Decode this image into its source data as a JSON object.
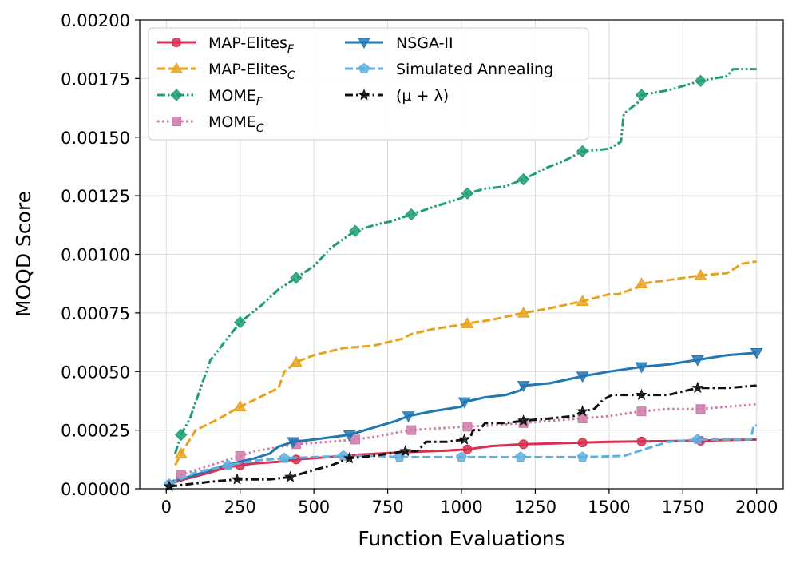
{
  "chart_data": {
    "type": "line",
    "title": "",
    "xlabel": "Function Evaluations",
    "ylabel": "MOQD Score",
    "xlim": [
      -90,
      2090
    ],
    "ylim": [
      0,
      0.002
    ],
    "xticks": [
      0,
      250,
      500,
      750,
      1000,
      1250,
      1500,
      1750,
      2000
    ],
    "xtick_labels": [
      "0",
      "250",
      "500",
      "750",
      "1000",
      "1250",
      "1500",
      "1750",
      "2000"
    ],
    "yticks": [
      0,
      0.00025,
      0.0005,
      0.00075,
      0.001,
      0.00125,
      0.0015,
      0.00175,
      0.002
    ],
    "ytick_labels": [
      "0.00000",
      "0.00025",
      "0.00050",
      "0.00075",
      "0.00100",
      "0.00125",
      "0.00150",
      "0.00175",
      "0.00200"
    ],
    "grid": true,
    "legend_position": "top-left",
    "series": [
      {
        "name": "MAP-Elites",
        "subscript": "F",
        "color": "#d62f4f",
        "line_style": "solid",
        "marker": "circle",
        "markers_at": [
          250,
          440,
          1020,
          1210,
          1410,
          1610,
          1810
        ],
        "points": [
          [
            10,
            2e-05
          ],
          [
            60,
            4e-05
          ],
          [
            150,
            7e-05
          ],
          [
            200,
            9e-05
          ],
          [
            250,
            0.0001
          ],
          [
            300,
            0.000108
          ],
          [
            380,
            0.000115
          ],
          [
            440,
            0.000125
          ],
          [
            550,
            0.000135
          ],
          [
            650,
            0.000145
          ],
          [
            750,
            0.000152
          ],
          [
            850,
            0.000158
          ],
          [
            950,
            0.000163
          ],
          [
            1020,
            0.000168
          ],
          [
            1100,
            0.000182
          ],
          [
            1210,
            0.00019
          ],
          [
            1300,
            0.000193
          ],
          [
            1410,
            0.000197
          ],
          [
            1500,
            0.0002
          ],
          [
            1610,
            0.000202
          ],
          [
            1700,
            0.000203
          ],
          [
            1810,
            0.000205
          ],
          [
            1900,
            0.000208
          ],
          [
            2000,
            0.00021
          ]
        ]
      },
      {
        "name": "MAP-Elites",
        "subscript": "C",
        "color": "#e8a21f",
        "line_style": "dashed",
        "marker": "triangle-up",
        "markers_at": [
          50,
          250,
          440,
          1020,
          1210,
          1410,
          1610,
          1810
        ],
        "points": [
          [
            30,
            0.0001
          ],
          [
            50,
            0.00015
          ],
          [
            100,
            0.00025
          ],
          [
            180,
            0.0003
          ],
          [
            250,
            0.00035
          ],
          [
            300,
            0.00038
          ],
          [
            380,
            0.00043
          ],
          [
            400,
            0.0005
          ],
          [
            440,
            0.00054
          ],
          [
            500,
            0.00057
          ],
          [
            600,
            0.0006
          ],
          [
            700,
            0.00061
          ],
          [
            800,
            0.00064
          ],
          [
            830,
            0.00066
          ],
          [
            900,
            0.00068
          ],
          [
            1000,
            0.0007
          ],
          [
            1020,
            0.000705
          ],
          [
            1100,
            0.00072
          ],
          [
            1210,
            0.00075
          ],
          [
            1300,
            0.00077
          ],
          [
            1410,
            0.0008
          ],
          [
            1500,
            0.00083
          ],
          [
            1530,
            0.00083
          ],
          [
            1600,
            0.00086
          ],
          [
            1610,
            0.000875
          ],
          [
            1700,
            0.00089
          ],
          [
            1810,
            0.00091
          ],
          [
            1900,
            0.00092
          ],
          [
            1950,
            0.00096
          ],
          [
            2000,
            0.00097
          ]
        ]
      },
      {
        "name": "MOME",
        "subscript": "F",
        "color": "#1d9e73",
        "line_style": "dashdotdot",
        "marker": "diamond",
        "markers_at": [
          50,
          250,
          440,
          640,
          830,
          1020,
          1210,
          1410,
          1610,
          1810
        ],
        "points": [
          [
            30,
            0.00015
          ],
          [
            50,
            0.00023
          ],
          [
            80,
            0.0003
          ],
          [
            150,
            0.00055
          ],
          [
            170,
            0.00058
          ],
          [
            200,
            0.00063
          ],
          [
            250,
            0.00071
          ],
          [
            320,
            0.00078
          ],
          [
            380,
            0.00085
          ],
          [
            440,
            0.0009
          ],
          [
            500,
            0.00095
          ],
          [
            560,
            0.00103
          ],
          [
            640,
            0.0011
          ],
          [
            720,
            0.00113
          ],
          [
            760,
            0.00114
          ],
          [
            830,
            0.00117
          ],
          [
            900,
            0.0012
          ],
          [
            1000,
            0.00124
          ],
          [
            1020,
            0.00126
          ],
          [
            1080,
            0.00128
          ],
          [
            1150,
            0.00129
          ],
          [
            1210,
            0.00132
          ],
          [
            1290,
            0.00137
          ],
          [
            1350,
            0.0014
          ],
          [
            1410,
            0.00144
          ],
          [
            1500,
            0.00145
          ],
          [
            1540,
            0.00148
          ],
          [
            1550,
            0.0016
          ],
          [
            1600,
            0.00165
          ],
          [
            1610,
            0.00168
          ],
          [
            1700,
            0.0017
          ],
          [
            1810,
            0.00174
          ],
          [
            1900,
            0.00176
          ],
          [
            1920,
            0.00179
          ],
          [
            2000,
            0.00179
          ]
        ]
      },
      {
        "name": "MOME",
        "subscript": "C",
        "color": "#cc79a7",
        "line_style": "dotted",
        "marker": "square",
        "markers_at": [
          50,
          250,
          440,
          640,
          830,
          1020,
          1210,
          1410,
          1610,
          1810
        ],
        "points": [
          [
            10,
            2e-05
          ],
          [
            50,
            6e-05
          ],
          [
            150,
            0.0001
          ],
          [
            250,
            0.00014
          ],
          [
            300,
            0.00016
          ],
          [
            440,
            0.00019
          ],
          [
            550,
            0.0002
          ],
          [
            640,
            0.00021
          ],
          [
            700,
            0.00022
          ],
          [
            830,
            0.00025
          ],
          [
            950,
            0.00026
          ],
          [
            1020,
            0.000265
          ],
          [
            1100,
            0.00027
          ],
          [
            1210,
            0.00028
          ],
          [
            1300,
            0.00029
          ],
          [
            1410,
            0.0003
          ],
          [
            1500,
            0.00031
          ],
          [
            1610,
            0.00033
          ],
          [
            1700,
            0.00034
          ],
          [
            1810,
            0.00034
          ],
          [
            1900,
            0.00035
          ],
          [
            2000,
            0.00036
          ]
        ]
      },
      {
        "name": "NSGA-II",
        "subscript": "",
        "color": "#1f77b4",
        "line_style": "solid",
        "marker": "triangle-down",
        "markers_at": [
          430,
          620,
          820,
          1010,
          1210,
          1410,
          1610,
          1800,
          2000
        ],
        "points": [
          [
            20,
            3e-05
          ],
          [
            100,
            6e-05
          ],
          [
            200,
            0.0001
          ],
          [
            300,
            0.00013
          ],
          [
            350,
            0.00015
          ],
          [
            380,
            0.00018
          ],
          [
            430,
            0.0002
          ],
          [
            500,
            0.00021
          ],
          [
            620,
            0.00023
          ],
          [
            700,
            0.00026
          ],
          [
            780,
            0.00029
          ],
          [
            820,
            0.00031
          ],
          [
            900,
            0.00033
          ],
          [
            1000,
            0.00035
          ],
          [
            1010,
            0.00037
          ],
          [
            1080,
            0.00039
          ],
          [
            1150,
            0.0004
          ],
          [
            1200,
            0.00042
          ],
          [
            1210,
            0.00044
          ],
          [
            1300,
            0.00045
          ],
          [
            1410,
            0.00048
          ],
          [
            1500,
            0.0005
          ],
          [
            1610,
            0.00052
          ],
          [
            1700,
            0.00053
          ],
          [
            1800,
            0.00055
          ],
          [
            1900,
            0.00057
          ],
          [
            2000,
            0.00058
          ]
        ]
      },
      {
        "name": "Simulated Annealing",
        "subscript": "",
        "color": "#5fb0e3",
        "line_style": "dashed",
        "marker": "pentagon",
        "markers_at": [
          10,
          210,
          400,
          600,
          790,
          1000,
          1200,
          1410,
          1800
        ],
        "points": [
          [
            10,
            2e-05
          ],
          [
            100,
            7e-05
          ],
          [
            210,
            0.0001
          ],
          [
            300,
            0.00012
          ],
          [
            400,
            0.00013
          ],
          [
            500,
            0.000135
          ],
          [
            600,
            0.00014
          ],
          [
            700,
            0.00014
          ],
          [
            790,
            0.000135
          ],
          [
            900,
            0.000135
          ],
          [
            1000,
            0.000135
          ],
          [
            1200,
            0.000135
          ],
          [
            1410,
            0.000135
          ],
          [
            1550,
            0.00014
          ],
          [
            1600,
            0.00016
          ],
          [
            1700,
            0.0002
          ],
          [
            1800,
            0.00021
          ],
          [
            1900,
            0.00021
          ],
          [
            1980,
            0.00021
          ],
          [
            1990,
            0.00027
          ],
          [
            2000,
            0.00027
          ]
        ]
      },
      {
        "name": "(μ + λ)",
        "subscript": "",
        "color": "#111111",
        "line_style": "dashdot",
        "marker": "star",
        "markers_at": [
          10,
          240,
          420,
          620,
          810,
          1010,
          1210,
          1410,
          1610,
          1800
        ],
        "points": [
          [
            10,
            1e-05
          ],
          [
            150,
            3e-05
          ],
          [
            240,
            4e-05
          ],
          [
            350,
            4e-05
          ],
          [
            420,
            5e-05
          ],
          [
            500,
            8e-05
          ],
          [
            560,
            0.0001
          ],
          [
            620,
            0.00013
          ],
          [
            700,
            0.00014
          ],
          [
            810,
            0.00016
          ],
          [
            850,
            0.00016
          ],
          [
            880,
            0.0002
          ],
          [
            950,
            0.0002
          ],
          [
            1010,
            0.00021
          ],
          [
            1030,
            0.00022
          ],
          [
            1040,
            0.00025
          ],
          [
            1060,
            0.00025
          ],
          [
            1080,
            0.00028
          ],
          [
            1150,
            0.00028
          ],
          [
            1210,
            0.00029
          ],
          [
            1300,
            0.0003
          ],
          [
            1380,
            0.00031
          ],
          [
            1410,
            0.00033
          ],
          [
            1450,
            0.00034
          ],
          [
            1480,
            0.00038
          ],
          [
            1510,
            0.0004
          ],
          [
            1610,
            0.0004
          ],
          [
            1700,
            0.0004
          ],
          [
            1800,
            0.00043
          ],
          [
            1900,
            0.00043
          ],
          [
            2000,
            0.00044
          ]
        ]
      }
    ]
  }
}
